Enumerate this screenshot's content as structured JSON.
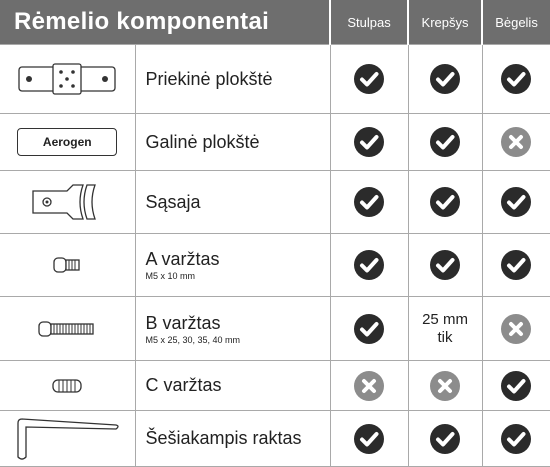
{
  "header": {
    "title": "Rėmelio komponentai",
    "columns": [
      "Stulpas",
      "Krepšys",
      "Bėgelis"
    ]
  },
  "rows": [
    {
      "name": "Priekinė plokštė",
      "cells": [
        true,
        true,
        true
      ]
    },
    {
      "name": "Galinė plokštė",
      "image_text": "Aerogen",
      "cells": [
        true,
        true,
        false
      ]
    },
    {
      "name": "Sąsaja",
      "cells": [
        true,
        true,
        true
      ]
    },
    {
      "name": "A varžtas",
      "note": "M5 x 10 mm",
      "cells": [
        true,
        true,
        true
      ]
    },
    {
      "name": "B varžtas",
      "note": "M5 x 25, 30, 35, 40 mm",
      "cells": [
        true,
        "25 mm tik",
        false
      ]
    },
    {
      "name": "C varžtas",
      "cells": [
        false,
        false,
        true
      ]
    },
    {
      "name": "Šešiakampis raktas",
      "cells": [
        true,
        true,
        true
      ]
    }
  ]
}
